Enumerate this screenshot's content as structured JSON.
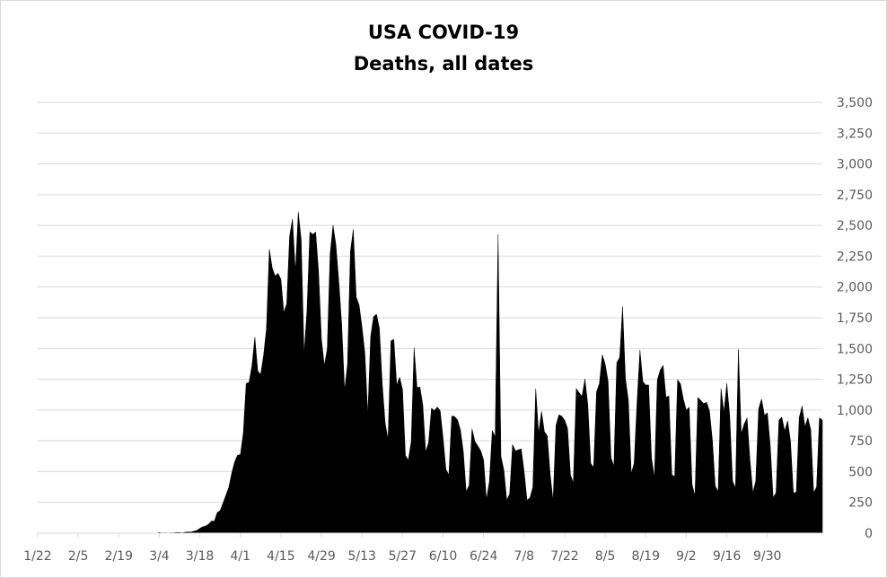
{
  "chart_data": {
    "type": "area",
    "title": "USA COVID-19",
    "subtitle": "Deaths, all dates",
    "xlabel": "",
    "ylabel": "",
    "ylim": [
      0,
      3500
    ],
    "yticks": [
      0,
      250,
      500,
      750,
      1000,
      1250,
      1500,
      1750,
      2000,
      2250,
      2500,
      2750,
      3000,
      3250,
      3500
    ],
    "ytick_labels": [
      "0",
      "250",
      "500",
      "750",
      "1,000",
      "1,250",
      "1,500",
      "1,750",
      "2,000",
      "2,250",
      "2,500",
      "2,750",
      "3,000",
      "3,250",
      "3,500"
    ],
    "y_axis_side": "right",
    "grid": true,
    "legend": "none",
    "fill_color": "#000000",
    "grid_color": "#d9d9d9",
    "x_tick_labels": [
      "1/22",
      "2/5",
      "2/19",
      "3/4",
      "3/18",
      "4/1",
      "4/15",
      "4/29",
      "5/13",
      "5/27",
      "6/10",
      "6/24",
      "7/8",
      "7/22",
      "8/5",
      "8/19",
      "9/2",
      "9/16",
      "9/30"
    ],
    "x_start": "1/22",
    "x_end": "10/2",
    "series": [
      {
        "values": [
          0,
          0,
          0,
          0,
          0,
          0,
          0,
          0,
          0,
          0,
          0,
          0,
          0,
          0,
          0,
          0,
          0,
          0,
          0,
          0,
          0,
          0,
          0,
          0,
          0,
          0,
          0,
          0,
          0,
          0,
          0,
          0,
          0,
          0,
          0,
          0,
          0,
          0,
          1,
          0,
          0,
          1,
          5,
          2,
          3,
          2,
          3,
          3,
          6,
          5,
          3,
          8,
          10,
          9,
          16,
          23,
          39,
          52,
          58,
          73,
          98,
          97,
          167,
          183,
          244,
          308,
          372,
          486,
          577,
          633,
          637,
          812,
          1216,
          1225,
          1361,
          1592,
          1318,
          1289,
          1442,
          1657,
          2306,
          2153,
          2089,
          2111,
          2063,
          1792,
          1864,
          2414,
          2553,
          2123,
          2610,
          2385,
          1454,
          1812,
          2448,
          2427,
          2446,
          2125,
          1575,
          1362,
          1497,
          2271,
          2502,
          2341,
          2043,
          1695,
          1158,
          1373,
          2290,
          2467,
          1919,
          1853,
          1676,
          1461,
          961,
          1598,
          1759,
          1779,
          1668,
          1212,
          896,
          760,
          1562,
          1574,
          1200,
          1268,
          1167,
          632,
          593,
          745,
          1507,
          1183,
          1187,
          1043,
          660,
          735,
          1015,
          996,
          1025,
          995,
          774,
          518,
          474,
          952,
          947,
          920,
          839,
          660,
          336,
          389,
          848,
          746,
          709,
          670,
          595,
          272,
          421,
          834,
          782,
          2427,
          624,
          513,
          268,
          319,
          720,
          668,
          677,
          684,
          500,
          268,
          287,
          371,
          1174,
          810,
          989,
          825,
          790,
          476,
          263,
          876,
          961,
          950,
          918,
          852,
          474,
          407,
          1175,
          1141,
          1112,
          1252,
          1044,
          568,
          534,
          1147,
          1216,
          1449,
          1373,
          1235,
          614,
          543,
          1384,
          1429,
          1840,
          1255,
          1080,
          485,
          569,
          1066,
          1487,
          1232,
          1203,
          1204,
          611,
          454,
          1244,
          1325,
          1363,
          1104,
          1115,
          476,
          458,
          1247,
          1213,
          1089,
          999,
          1023,
          396,
          306,
          1102,
          1079,
          1052,
          1063,
          995,
          762,
          383,
          337,
          1175,
          981,
          1216,
          956,
          423,
          367,
          1492,
          807,
          886,
          936,
          595,
          330,
          423,
          1010,
          1090,
          957,
          978,
          713,
          290,
          327,
          919,
          943,
          829,
          913,
          748,
          325,
          334,
          939,
          1033,
          865,
          938,
          838,
          329,
          375,
          937,
          919
        ]
      }
    ]
  }
}
